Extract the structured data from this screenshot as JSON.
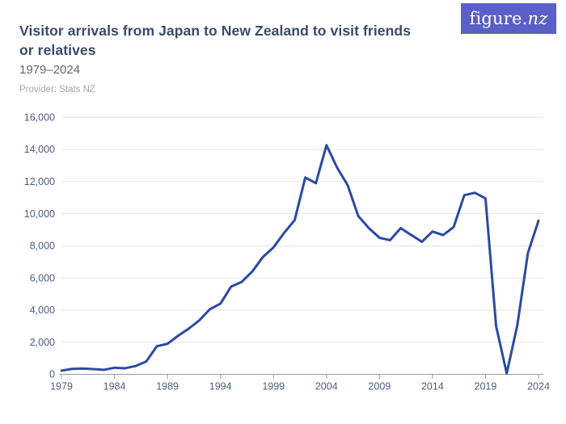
{
  "header": {
    "logo_text_main": "figure.",
    "logo_text_accent": "nz",
    "title_lines": [
      "Visitor arrivals from Japan to New Zealand to visit friends",
      "or relatives"
    ],
    "subtitle": "1979–2024",
    "provider": "Provider: Stats NZ"
  },
  "colors": {
    "logo_background": "#5b5fc8",
    "title_text": "#3a4a6b",
    "subtitle_text": "#63666c",
    "provider_text": "#a3a6ac",
    "axis_label": "#4e5c7c",
    "gridline": "#e5e5e7",
    "axis_line": "#9a9ba1",
    "series_line": "#2b4aa3"
  },
  "chart_data": {
    "type": "line",
    "title": "Visitor arrivals from Japan to New Zealand to visit friends or relatives",
    "subtitle": "1979–2024",
    "xlabel": "",
    "ylabel": "",
    "x": [
      1979,
      1980,
      1981,
      1982,
      1983,
      1984,
      1985,
      1986,
      1987,
      1988,
      1989,
      1990,
      1991,
      1992,
      1993,
      1994,
      1995,
      1996,
      1997,
      1998,
      1999,
      2000,
      2001,
      2002,
      2003,
      2004,
      2005,
      2006,
      2007,
      2008,
      2009,
      2010,
      2011,
      2012,
      2013,
      2014,
      2015,
      2016,
      2017,
      2018,
      2019,
      2020,
      2021,
      2022,
      2023,
      2024
    ],
    "series": [
      {
        "name": "Visitor arrivals from Japan (visit friends or relatives)",
        "values": [
          230,
          340,
          360,
          330,
          280,
          410,
          380,
          520,
          800,
          1750,
          1900,
          2400,
          2840,
          3360,
          4050,
          4400,
          5460,
          5750,
          6400,
          7300,
          7900,
          8800,
          9600,
          12250,
          11900,
          14260,
          12870,
          11770,
          9850,
          9100,
          8500,
          8350,
          9100,
          8670,
          8250,
          8890,
          8670,
          9170,
          11150,
          11300,
          10950,
          3000,
          60,
          3050,
          7550,
          9560
        ]
      }
    ],
    "ylim": [
      0,
      16000
    ],
    "y_ticks": [
      0,
      2000,
      4000,
      6000,
      8000,
      10000,
      12000,
      14000,
      16000
    ],
    "x_ticks": [
      1979,
      1984,
      1989,
      1994,
      1999,
      2004,
      2009,
      2014,
      2019,
      2024
    ],
    "grid": "horizontal",
    "legend": "none"
  }
}
